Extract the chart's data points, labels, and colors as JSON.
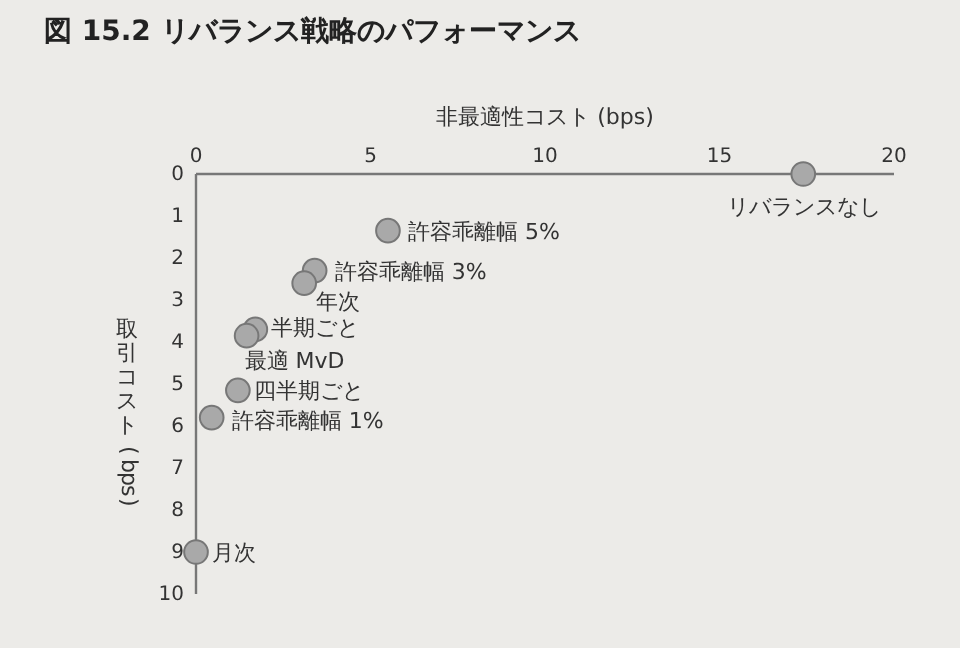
{
  "chart_data": {
    "type": "scatter",
    "title": "図 15.2  リバランス戦略のパフォーマンス",
    "xlabel": "非最適性コスト (bps)",
    "ylabel": "取引コスト (bps)",
    "xlim": [
      0,
      20
    ],
    "xticks": [
      0,
      5,
      10,
      15,
      20
    ],
    "ylim": [
      10,
      0
    ],
    "yticks": [
      0,
      1,
      2,
      3,
      4,
      5,
      6,
      7,
      8,
      9,
      10
    ],
    "grid": false,
    "marker": "circle",
    "series": [
      {
        "color": "#a9a9a9",
        "x": [
          17.4,
          5.5,
          3.4,
          3.1,
          1.7,
          1.45,
          1.2,
          0.45,
          0
        ],
        "values": [
          0,
          1.35,
          2.3,
          2.6,
          3.7,
          3.85,
          5.15,
          5.8,
          9
        ]
      }
    ],
    "annotations": [
      {
        "text": "リバランスなし",
        "x": 17.4,
        "y": 0
      },
      {
        "text": "許容乖離幅 5%",
        "x": 5.5,
        "y": 1.35
      },
      {
        "text": "許容乖離幅 3%",
        "x": 3.4,
        "y": 2.3
      },
      {
        "text": "年次",
        "x": 3.1,
        "y": 2.6
      },
      {
        "text": "半期ごと",
        "x": 1.7,
        "y": 3.7
      },
      {
        "text": "最適 MvD",
        "x": 1.45,
        "y": 3.85
      },
      {
        "text": "四半期ごと",
        "x": 1.2,
        "y": 5.15
      },
      {
        "text": "許容乖離幅 1%",
        "x": 0.45,
        "y": 5.8
      },
      {
        "text": "月次",
        "x": 0,
        "y": 9
      }
    ]
  }
}
